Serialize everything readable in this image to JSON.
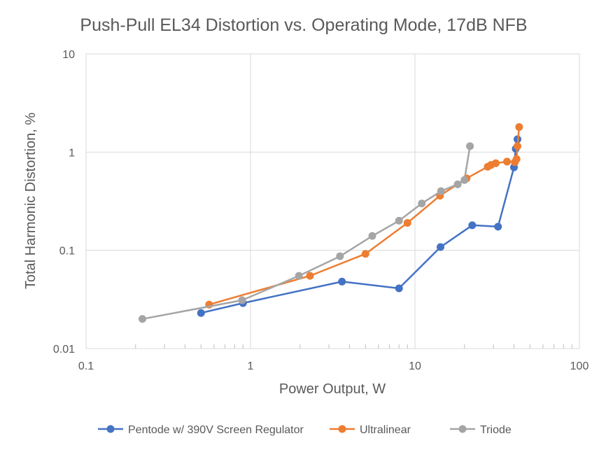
{
  "chart_data": {
    "type": "scatter",
    "title": "Push-Pull EL34 Distortion vs. Operating Mode, 17dB NFB",
    "xlabel": "Power Output, W",
    "ylabel": "Total Harmonic Distortion, %",
    "x_scale": "log",
    "y_scale": "log",
    "xlim": [
      0.1,
      100
    ],
    "ylim": [
      0.01,
      10
    ],
    "x_ticks": [
      "0.1",
      "1",
      "10",
      "100"
    ],
    "y_ticks": [
      "0.01",
      "0.1",
      "1",
      "10"
    ],
    "grid": true,
    "legend_position": "bottom",
    "series": [
      {
        "name": "Pentode w/ 390V Screen Regulator",
        "color": "#4472c4",
        "x": [
          0.5,
          0.9,
          3.6,
          8,
          14.3,
          22.3,
          32,
          40,
          41,
          42
        ],
        "y": [
          0.023,
          0.029,
          0.048,
          0.041,
          0.108,
          0.18,
          0.174,
          0.7,
          1.08,
          1.35
        ]
      },
      {
        "name": "Ultralinear",
        "color": "#ed7d31",
        "x": [
          0.56,
          2.3,
          5,
          9,
          14.2,
          20.6,
          27.7,
          29,
          31,
          36.3,
          40.5,
          41.5,
          42,
          43
        ],
        "y": [
          0.028,
          0.055,
          0.092,
          0.19,
          0.36,
          0.54,
          0.71,
          0.74,
          0.77,
          0.8,
          0.79,
          0.85,
          1.15,
          1.8
        ]
      },
      {
        "name": "Triode",
        "color": "#a5a5a5",
        "x": [
          0.22,
          0.89,
          1.97,
          3.5,
          5.5,
          8,
          11,
          14.4,
          18.2,
          20,
          21.6
        ],
        "y": [
          0.02,
          0.031,
          0.055,
          0.087,
          0.14,
          0.2,
          0.3,
          0.4,
          0.47,
          0.52,
          1.15
        ]
      }
    ]
  }
}
